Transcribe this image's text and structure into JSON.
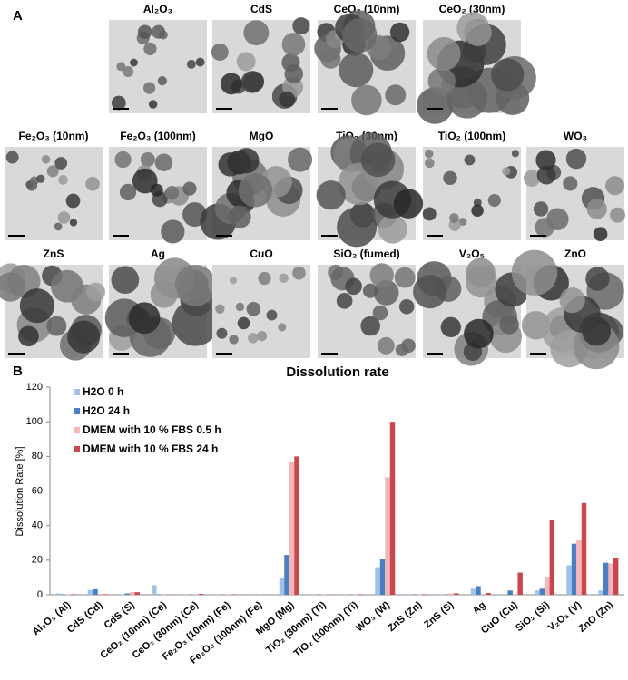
{
  "panel_a": {
    "label": "A",
    "images": [
      "Al₂O₃",
      "CdS",
      "CeO₂ (10nm)",
      "CeO₂ (30nm)",
      "Fe₂O₃ (10nm)",
      "Fe₂O₃ (100nm)",
      "MgO",
      "TiO₂ (30nm)",
      "TiO₂ (100nm)",
      "WO₃",
      "ZnS",
      "Ag",
      "CuO",
      "SiO₂ (fumed)",
      "V₂O₅",
      "ZnO"
    ]
  },
  "panel_b_label": "B",
  "chart_data": {
    "type": "bar",
    "title": "Dissolution rate",
    "y_label": "Dissolution Rate [%]",
    "categories": [
      "Al₂O₃ (Al)",
      "CdS (Cd)",
      "CdS (S)",
      "CeO₂ (10nm) (Ce)",
      "CeO₂ (30nm) (Ce)",
      "Fe₂O₃ (10nm) (Fe)",
      "Fe₂O₃ (100nm) (Fe)",
      "MgO (Mg)",
      "TiO₂ (30nm) (Ti)",
      "TiO₂ (100nm) (Ti)",
      "WO₃ (W)",
      "ZnS (Zn)",
      "ZnS (S)",
      "Ag",
      "CuO (Cu)",
      "SiO₂ (Si)",
      "V₂O₅ (V)",
      "ZnO (Zn)"
    ],
    "series": [
      {
        "name": "H2O 0 h",
        "color": "#9dc3e6",
        "values": [
          0.8,
          2.8,
          0.3,
          5.5,
          0.2,
          0.2,
          0.1,
          10,
          0.2,
          0.2,
          16,
          0.3,
          0.3,
          3.5,
          0.1,
          2.5,
          17,
          2.5
        ]
      },
      {
        "name": "H2O 24 h",
        "color": "#4a7fc1",
        "values": [
          0.3,
          3.2,
          0.8,
          0.3,
          0.2,
          0.2,
          0.1,
          23,
          0.2,
          0.2,
          20.5,
          0.3,
          0.3,
          5,
          2.5,
          3.5,
          29.5,
          18.5
        ]
      },
      {
        "name": "DMEM with 10 % FBS 0.5 h",
        "color": "#f4b6b8",
        "values": [
          0.3,
          0.5,
          1.5,
          0.2,
          0.2,
          0.2,
          0.1,
          76.5,
          0.2,
          0.2,
          68,
          0.3,
          0.8,
          0.5,
          0.2,
          10.5,
          31.5,
          18
        ]
      },
      {
        "name": "DMEM with 10 % FBS 24 h",
        "color": "#c9474f",
        "values": [
          0.3,
          0.3,
          1.5,
          0.2,
          0.5,
          0.3,
          0.1,
          80,
          0.2,
          0.3,
          100,
          0.3,
          0.8,
          1,
          12.8,
          43.5,
          53,
          21.5
        ]
      }
    ],
    "ylim": [
      0,
      120
    ],
    "yticks": [
      0,
      20,
      40,
      60,
      80,
      100,
      120
    ],
    "grid": false,
    "legend": "upper left"
  }
}
